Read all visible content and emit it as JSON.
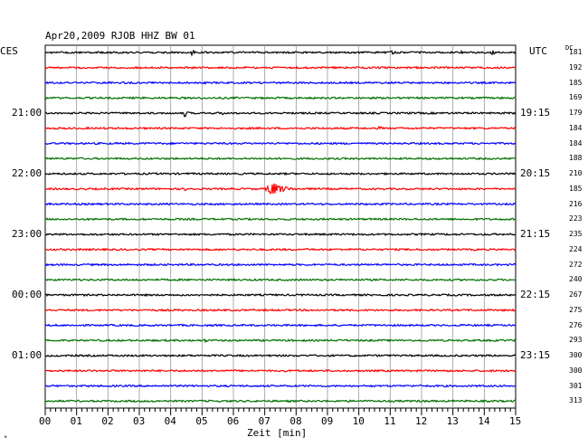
{
  "header": {
    "title": "Apr20,2009   RJOB HHZ BW 01",
    "left_label": "CES",
    "right_label": "UTC",
    "dc_label": "DC"
  },
  "corner_mark": "*",
  "chart_data": {
    "type": "line",
    "title": "Apr20,2009   RJOB HHZ BW 01",
    "xlabel": "Zeit [min]",
    "ylabel": "",
    "xlim": [
      0,
      15
    ],
    "x_ticks": [
      "00",
      "01",
      "02",
      "03",
      "04",
      "05",
      "06",
      "07",
      "08",
      "09",
      "10",
      "11",
      "12",
      "13",
      "14",
      "15"
    ],
    "left_time_labels": [
      {
        "row": 4,
        "text": "21:00"
      },
      {
        "row": 8,
        "text": "22:00"
      },
      {
        "row": 12,
        "text": "23:00"
      },
      {
        "row": 16,
        "text": "00:00"
      },
      {
        "row": 20,
        "text": "01:00"
      }
    ],
    "right_time_labels": [
      {
        "row": 4,
        "text": "19:15"
      },
      {
        "row": 8,
        "text": "20:15"
      },
      {
        "row": 12,
        "text": "21:15"
      },
      {
        "row": 16,
        "text": "22:15"
      },
      {
        "row": 20,
        "text": "23:15"
      }
    ],
    "trace_colors": [
      "#000000",
      "#ff0000",
      "#0000ff",
      "#007000"
    ],
    "dc_offsets": [
      181,
      192,
      185,
      169,
      179,
      184,
      184,
      188,
      210,
      185,
      216,
      223,
      235,
      224,
      272,
      240,
      267,
      275,
      276,
      293,
      300,
      300,
      301,
      313
    ],
    "events": [
      {
        "row": 0,
        "start": 4.6,
        "end": 5.0,
        "amp": 0.45
      },
      {
        "row": 0,
        "start": 11.0,
        "end": 11.3,
        "amp": 0.35
      },
      {
        "row": 0,
        "start": 13.2,
        "end": 13.5,
        "amp": 0.3
      },
      {
        "row": 0,
        "start": 14.2,
        "end": 14.5,
        "amp": 0.4
      },
      {
        "row": 2,
        "start": 10.9,
        "end": 11.4,
        "amp": 0.25
      },
      {
        "row": 4,
        "start": 4.4,
        "end": 4.7,
        "amp": 0.6
      },
      {
        "row": 4,
        "start": 5.6,
        "end": 5.9,
        "amp": 0.35
      },
      {
        "row": 5,
        "start": 10.6,
        "end": 11.0,
        "amp": 0.3
      },
      {
        "row": 9,
        "start": 4.4,
        "end": 5.0,
        "amp": 0.35
      },
      {
        "row": 9,
        "start": 7.0,
        "end": 8.2,
        "amp": 1.1
      },
      {
        "row": 17,
        "start": 4.2,
        "end": 4.5,
        "amp": 0.2
      },
      {
        "row": 19,
        "start": 5.0,
        "end": 5.5,
        "amp": 0.25
      },
      {
        "row": 20,
        "start": 7.0,
        "end": 7.4,
        "amp": 0.25
      },
      {
        "row": 23,
        "start": 12.0,
        "end": 12.4,
        "amp": 0.25
      }
    ]
  }
}
